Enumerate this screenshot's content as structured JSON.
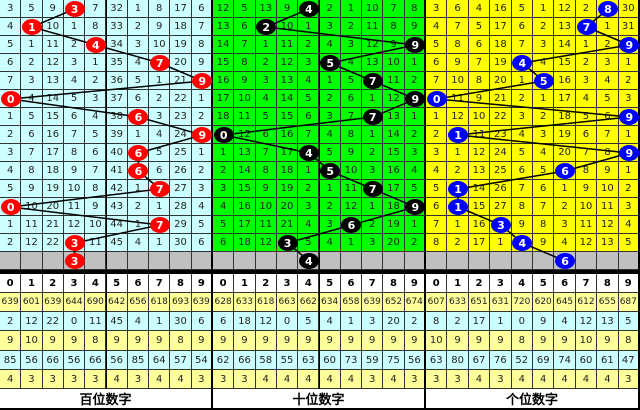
{
  "panels": [
    {
      "label": "百位数字",
      "bg": "#ccffff",
      "ball_color": "#ff0000",
      "rows": [
        [
          "3",
          "5",
          "9",
          "3",
          "7",
          "32",
          "1",
          "8",
          "17",
          "6"
        ],
        [
          "4",
          "1",
          "10",
          "1",
          "8",
          "33",
          "2",
          "9",
          "18",
          "7"
        ],
        [
          "5",
          "1",
          "11",
          "2",
          "4",
          "34",
          "3",
          "10",
          "19",
          "8"
        ],
        [
          "6",
          "2",
          "12",
          "3",
          "1",
          "35",
          "4",
          "7",
          "20",
          "9"
        ],
        [
          "7",
          "3",
          "13",
          "4",
          "2",
          "36",
          "5",
          "1",
          "21",
          "9"
        ],
        [
          "0",
          "4",
          "14",
          "5",
          "3",
          "37",
          "6",
          "2",
          "22",
          "1"
        ],
        [
          "1",
          "5",
          "15",
          "6",
          "4",
          "38",
          "6",
          "3",
          "23",
          "2"
        ],
        [
          "2",
          "6",
          "16",
          "7",
          "5",
          "39",
          "1",
          "4",
          "24",
          "9"
        ],
        [
          "3",
          "7",
          "17",
          "8",
          "6",
          "40",
          "6",
          "5",
          "25",
          "1"
        ],
        [
          "4",
          "8",
          "18",
          "9",
          "7",
          "41",
          "6",
          "6",
          "26",
          "2"
        ],
        [
          "5",
          "9",
          "19",
          "10",
          "8",
          "42",
          "1",
          "7",
          "27",
          "3"
        ],
        [
          "0",
          "10",
          "20",
          "11",
          "9",
          "43",
          "2",
          "1",
          "28",
          "4"
        ],
        [
          "1",
          "11",
          "21",
          "12",
          "10",
          "44",
          "1",
          "7",
          "29",
          "5"
        ],
        [
          "2",
          "12",
          "22",
          "3",
          "11",
          "45",
          "4",
          "1",
          "30",
          "6"
        ]
      ],
      "hits": [
        3,
        1,
        4,
        7,
        9,
        0,
        6,
        9,
        6,
        6,
        7,
        0,
        7,
        3
      ],
      "next": {
        "col": 3,
        "value": "3"
      },
      "digits": [
        "0",
        "1",
        "2",
        "3",
        "4",
        "5",
        "6",
        "7",
        "8",
        "9"
      ],
      "stats": [
        [
          "639",
          "601",
          "639",
          "644",
          "690",
          "642",
          "656",
          "618",
          "693",
          "639"
        ],
        [
          "2",
          "12",
          "22",
          "0",
          "11",
          "45",
          "4",
          "1",
          "30",
          "6"
        ],
        [
          "9",
          "10",
          "9",
          "9",
          "8",
          "9",
          "9",
          "9",
          "8",
          "9"
        ],
        [
          "85",
          "56",
          "66",
          "56",
          "66",
          "56",
          "85",
          "64",
          "57",
          "54"
        ],
        [
          "4",
          "3",
          "3",
          "3",
          "3",
          "4",
          "3",
          "4",
          "4",
          "3"
        ]
      ]
    },
    {
      "label": "十位数字",
      "bg": "#00ff00",
      "ball_color": "#000000",
      "rows": [
        [
          "12",
          "5",
          "13",
          "9",
          "4",
          "2",
          "1",
          "10",
          "7",
          "8"
        ],
        [
          "13",
          "6",
          "2",
          "10",
          "1",
          "3",
          "2",
          "11",
          "8",
          "9"
        ],
        [
          "14",
          "7",
          "1",
          "11",
          "2",
          "4",
          "3",
          "12",
          "9",
          "9"
        ],
        [
          "15",
          "8",
          "2",
          "12",
          "3",
          "5",
          "4",
          "13",
          "10",
          "1"
        ],
        [
          "16",
          "9",
          "3",
          "13",
          "4",
          "1",
          "5",
          "7",
          "11",
          "2"
        ],
        [
          "17",
          "10",
          "4",
          "14",
          "5",
          "2",
          "6",
          "1",
          "12",
          "9"
        ],
        [
          "18",
          "11",
          "5",
          "15",
          "6",
          "3",
          "7",
          "7",
          "13",
          "1"
        ],
        [
          "0",
          "12",
          "6",
          "16",
          "7",
          "4",
          "8",
          "1",
          "14",
          "2"
        ],
        [
          "1",
          "13",
          "7",
          "17",
          "4",
          "5",
          "9",
          "2",
          "15",
          "3"
        ],
        [
          "2",
          "14",
          "8",
          "18",
          "1",
          "5",
          "10",
          "3",
          "16",
          "4"
        ],
        [
          "3",
          "15",
          "9",
          "19",
          "2",
          "1",
          "11",
          "7",
          "17",
          "5"
        ],
        [
          "4",
          "16",
          "10",
          "20",
          "3",
          "2",
          "12",
          "1",
          "18",
          "9"
        ],
        [
          "5",
          "17",
          "11",
          "21",
          "4",
          "3",
          "6",
          "2",
          "19",
          "1"
        ],
        [
          "6",
          "18",
          "12",
          "3",
          "5",
          "4",
          "1",
          "3",
          "20",
          "2"
        ]
      ],
      "hits": [
        4,
        2,
        9,
        5,
        7,
        9,
        7,
        0,
        4,
        5,
        7,
        9,
        6,
        3
      ],
      "next": {
        "col": 4,
        "value": "4"
      },
      "digits": [
        "0",
        "1",
        "2",
        "3",
        "4",
        "5",
        "6",
        "7",
        "8",
        "9"
      ],
      "stats": [
        [
          "628",
          "633",
          "618",
          "663",
          "662",
          "634",
          "658",
          "639",
          "652",
          "674"
        ],
        [
          "6",
          "18",
          "12",
          "0",
          "5",
          "4",
          "1",
          "3",
          "20",
          "2"
        ],
        [
          "9",
          "9",
          "9",
          "9",
          "9",
          "9",
          "9",
          "9",
          "9",
          "9"
        ],
        [
          "62",
          "66",
          "58",
          "55",
          "63",
          "60",
          "73",
          "59",
          "75",
          "56"
        ],
        [
          "3",
          "3",
          "4",
          "4",
          "4",
          "4",
          "4",
          "3",
          "4",
          "3"
        ]
      ]
    },
    {
      "label": "个位数字",
      "bg": "#ffff00",
      "ball_color": "#0000ff",
      "rows": [
        [
          "3",
          "6",
          "4",
          "16",
          "5",
          "1",
          "12",
          "2",
          "8",
          "30"
        ],
        [
          "4",
          "7",
          "5",
          "17",
          "6",
          "2",
          "13",
          "7",
          "1",
          "31"
        ],
        [
          "5",
          "8",
          "6",
          "18",
          "7",
          "3",
          "14",
          "1",
          "2",
          "9"
        ],
        [
          "6",
          "9",
          "7",
          "19",
          "4",
          "4",
          "15",
          "2",
          "3",
          "1"
        ],
        [
          "7",
          "10",
          "8",
          "20",
          "1",
          "5",
          "16",
          "3",
          "4",
          "2"
        ],
        [
          "0",
          "11",
          "9",
          "21",
          "2",
          "1",
          "17",
          "4",
          "5",
          "3"
        ],
        [
          "1",
          "12",
          "10",
          "22",
          "3",
          "2",
          "18",
          "5",
          "6",
          "9"
        ],
        [
          "2",
          "1",
          "11",
          "23",
          "4",
          "3",
          "19",
          "6",
          "7",
          "1"
        ],
        [
          "3",
          "1",
          "12",
          "24",
          "5",
          "4",
          "20",
          "7",
          "8",
          "9"
        ],
        [
          "4",
          "2",
          "13",
          "25",
          "6",
          "5",
          "6",
          "8",
          "9",
          "1"
        ],
        [
          "5",
          "1",
          "14",
          "26",
          "7",
          "6",
          "1",
          "9",
          "10",
          "2"
        ],
        [
          "6",
          "1",
          "15",
          "27",
          "8",
          "7",
          "2",
          "10",
          "11",
          "3"
        ],
        [
          "7",
          "1",
          "16",
          "3",
          "9",
          "8",
          "3",
          "11",
          "12",
          "4"
        ],
        [
          "8",
          "2",
          "17",
          "1",
          "4",
          "9",
          "4",
          "12",
          "13",
          "5"
        ]
      ],
      "hits": [
        8,
        7,
        9,
        4,
        5,
        0,
        9,
        1,
        9,
        6,
        1,
        1,
        3,
        4
      ],
      "next": {
        "col": 6,
        "value": "6"
      },
      "digits": [
        "0",
        "1",
        "2",
        "3",
        "4",
        "5",
        "6",
        "7",
        "8",
        "9"
      ],
      "stats": [
        [
          "607",
          "633",
          "651",
          "631",
          "720",
          "620",
          "645",
          "612",
          "655",
          "687"
        ],
        [
          "8",
          "2",
          "17",
          "1",
          "0",
          "9",
          "4",
          "12",
          "13",
          "5"
        ],
        [
          "10",
          "9",
          "9",
          "9",
          "8",
          "9",
          "9",
          "10",
          "9",
          "8"
        ],
        [
          "63",
          "80",
          "67",
          "76",
          "52",
          "69",
          "74",
          "60",
          "61",
          "47"
        ],
        [
          "3",
          "3",
          "4",
          "3",
          "4",
          "4",
          "4",
          "4",
          "4",
          "3"
        ]
      ]
    }
  ],
  "colors": {
    "gray_row": "#c0c0c0",
    "stat_yellow": "#ffff99",
    "stat_cyan": "#ccffff"
  }
}
